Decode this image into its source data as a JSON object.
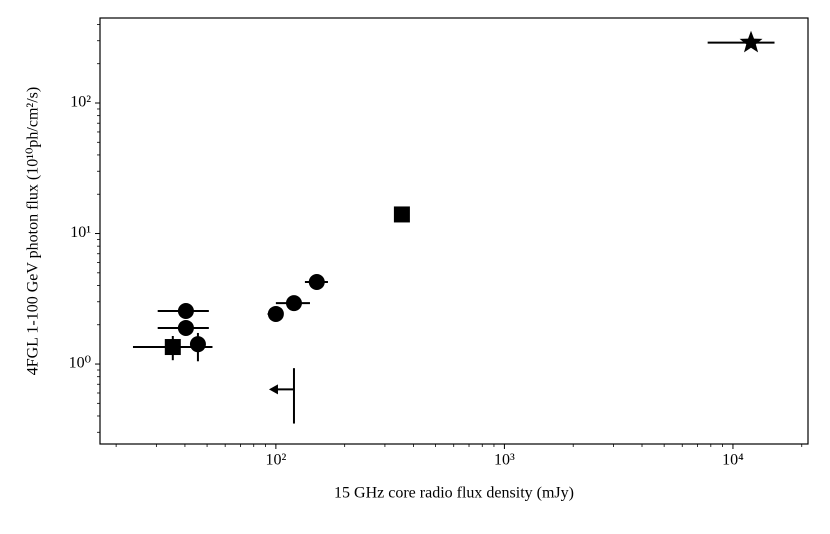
{
  "chart_data": {
    "type": "scatter",
    "xlabel": "15 GHz core radio flux density (mJy)",
    "ylabel": "4FGL 1-100 GeV photon flux (10¹⁰ph/cm²/s)",
    "xscale": "log",
    "yscale": "log",
    "xlim": [
      17,
      21300
    ],
    "ylim": [
      0.244,
      448
    ],
    "xticks": [
      {
        "value": 100,
        "label": "10²"
      },
      {
        "value": 1000,
        "label": "10³"
      },
      {
        "value": 10000,
        "label": "10⁴"
      }
    ],
    "yticks": [
      {
        "value": 1,
        "label": "10⁰"
      },
      {
        "value": 10,
        "label": "10¹"
      },
      {
        "value": 100,
        "label": "10²"
      }
    ],
    "xminor_ticks": [
      20,
      30,
      40,
      50,
      60,
      70,
      80,
      90,
      200,
      300,
      400,
      500,
      600,
      700,
      800,
      900,
      2000,
      3000,
      4000,
      5000,
      6000,
      7000,
      8000,
      9000,
      20000
    ],
    "yminor_ticks": [
      0.3,
      0.4,
      0.5,
      0.6,
      0.7,
      0.8,
      0.9,
      2,
      3,
      4,
      5,
      6,
      7,
      8,
      9,
      20,
      30,
      40,
      50,
      60,
      70,
      80,
      90,
      200,
      300,
      400
    ],
    "series": [
      {
        "marker": "circle",
        "color": "#000000",
        "x": [
          151,
          120,
          100,
          40.4,
          40.4,
          45.6
        ],
        "y": [
          4.25,
          2.93,
          2.42,
          2.55,
          1.89,
          1.42
        ],
        "xerr": [
          [
            17,
            18
          ],
          [
            20,
            21
          ],
          [
            8,
            8
          ],
          [
            10,
            10.5
          ],
          [
            10,
            10.5
          ],
          null
        ],
        "yerr": [
          [
            0.3,
            0.3
          ],
          null,
          [
            0.3,
            0.25
          ],
          null,
          null,
          [
            0.37,
            0.31
          ]
        ]
      },
      {
        "marker": "square",
        "color": "#000000",
        "x": [
          356,
          35.4
        ],
        "y": [
          14.0,
          1.35
        ],
        "xerr": [
          [
            20,
            20
          ],
          [
            11.7,
            17.4
          ]
        ],
        "yerr": [
          [
            0.7,
            0.7
          ],
          [
            0.28,
            0.29
          ]
        ]
      },
      {
        "marker": "star",
        "color": "#000000",
        "x": [
          12000
        ],
        "y": [
          290
        ],
        "xerr": [
          [
            4250,
            3200
          ]
        ],
        "yerr": [
          null
        ]
      },
      {
        "marker": "upper-limit-left",
        "color": "#000000",
        "x": [
          120
        ],
        "y": [
          0.64
        ],
        "xerr": [
          null
        ],
        "yerr": [
          [
            0.29,
            0.29
          ]
        ]
      }
    ]
  }
}
